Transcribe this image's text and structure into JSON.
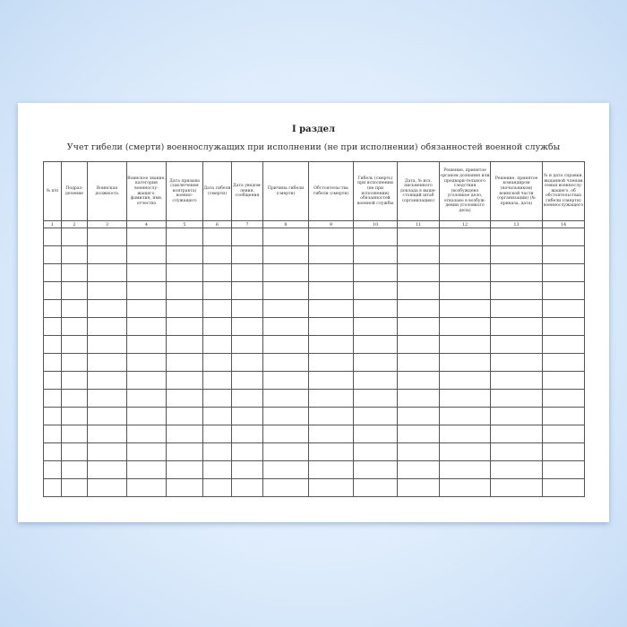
{
  "document": {
    "section_title": "I раздел",
    "subtitle": "Учет гибели (смерти) военнослужащих при исполнении (не при исполнении) обязанностей военной службы",
    "columns": [
      "№ п/п",
      "Подраз-деление",
      "Воинская должность",
      "Воинское звание, категория военнослу-жащего, фамилия, имя, отчество",
      "Дата призыва (заключения контракта) военно-служащего",
      "Дата гибели (смерти)",
      "Дата уведом-ления, сообщения",
      "Причина гибели (смерти)",
      "Обстоятельства гибели (смерти)",
      "Гибель (смерть) при исполнении (не при исполнении) обязанностей военной службы",
      "Дата, № исх. письменного доклада в выше-стоящий штаб (организацию)",
      "Решение, принятое органом дознания или предвари-тельного следствия (возбуждено уголовное дело, отказано в возбуж-дении уголовного дела)",
      "Решение, принятое командиром (начальником) воинской части (организации) (№ приказа, дата)",
      "№ и дата справки, выданной членам семьи военнослу-жащего, об обстоятельствах гибели (смерти) военнослужащего"
    ],
    "column_numbers": [
      "1",
      "2",
      "3",
      "4",
      "5",
      "6",
      "7",
      "8",
      "9",
      "10",
      "11",
      "12",
      "13",
      "14"
    ],
    "empty_row_count": 15
  }
}
